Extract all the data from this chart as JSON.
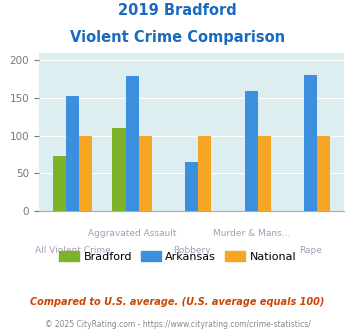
{
  "title_line1": "2019 Bradford",
  "title_line2": "Violent Crime Comparison",
  "categories": [
    "All Violent Crime",
    "Aggravated Assault",
    "Robbery",
    "Murder & Mans...",
    "Rape"
  ],
  "bradford": [
    73,
    110,
    0,
    0,
    0
  ],
  "arkansas": [
    153,
    179,
    65,
    160,
    181
  ],
  "national": [
    100,
    100,
    100,
    100,
    100
  ],
  "color_bradford": "#7db32a",
  "color_arkansas": "#3c8fdf",
  "color_national": "#f5a623",
  "ylim": [
    0,
    210
  ],
  "yticks": [
    0,
    50,
    100,
    150,
    200
  ],
  "background_color": "#ddeef0",
  "title_color": "#1a6bbf",
  "xlabel_top_color": "#b0a0c0",
  "xlabel_bot_color": "#b0a0c0",
  "legend_labels": [
    "Bradford",
    "Arkansas",
    "National"
  ],
  "footnote1": "Compared to U.S. average. (U.S. average equals 100)",
  "footnote2": "© 2025 CityRating.com - https://www.cityrating.com/crime-statistics/",
  "footnote1_color": "#cc4400",
  "footnote2_color": "#888888"
}
